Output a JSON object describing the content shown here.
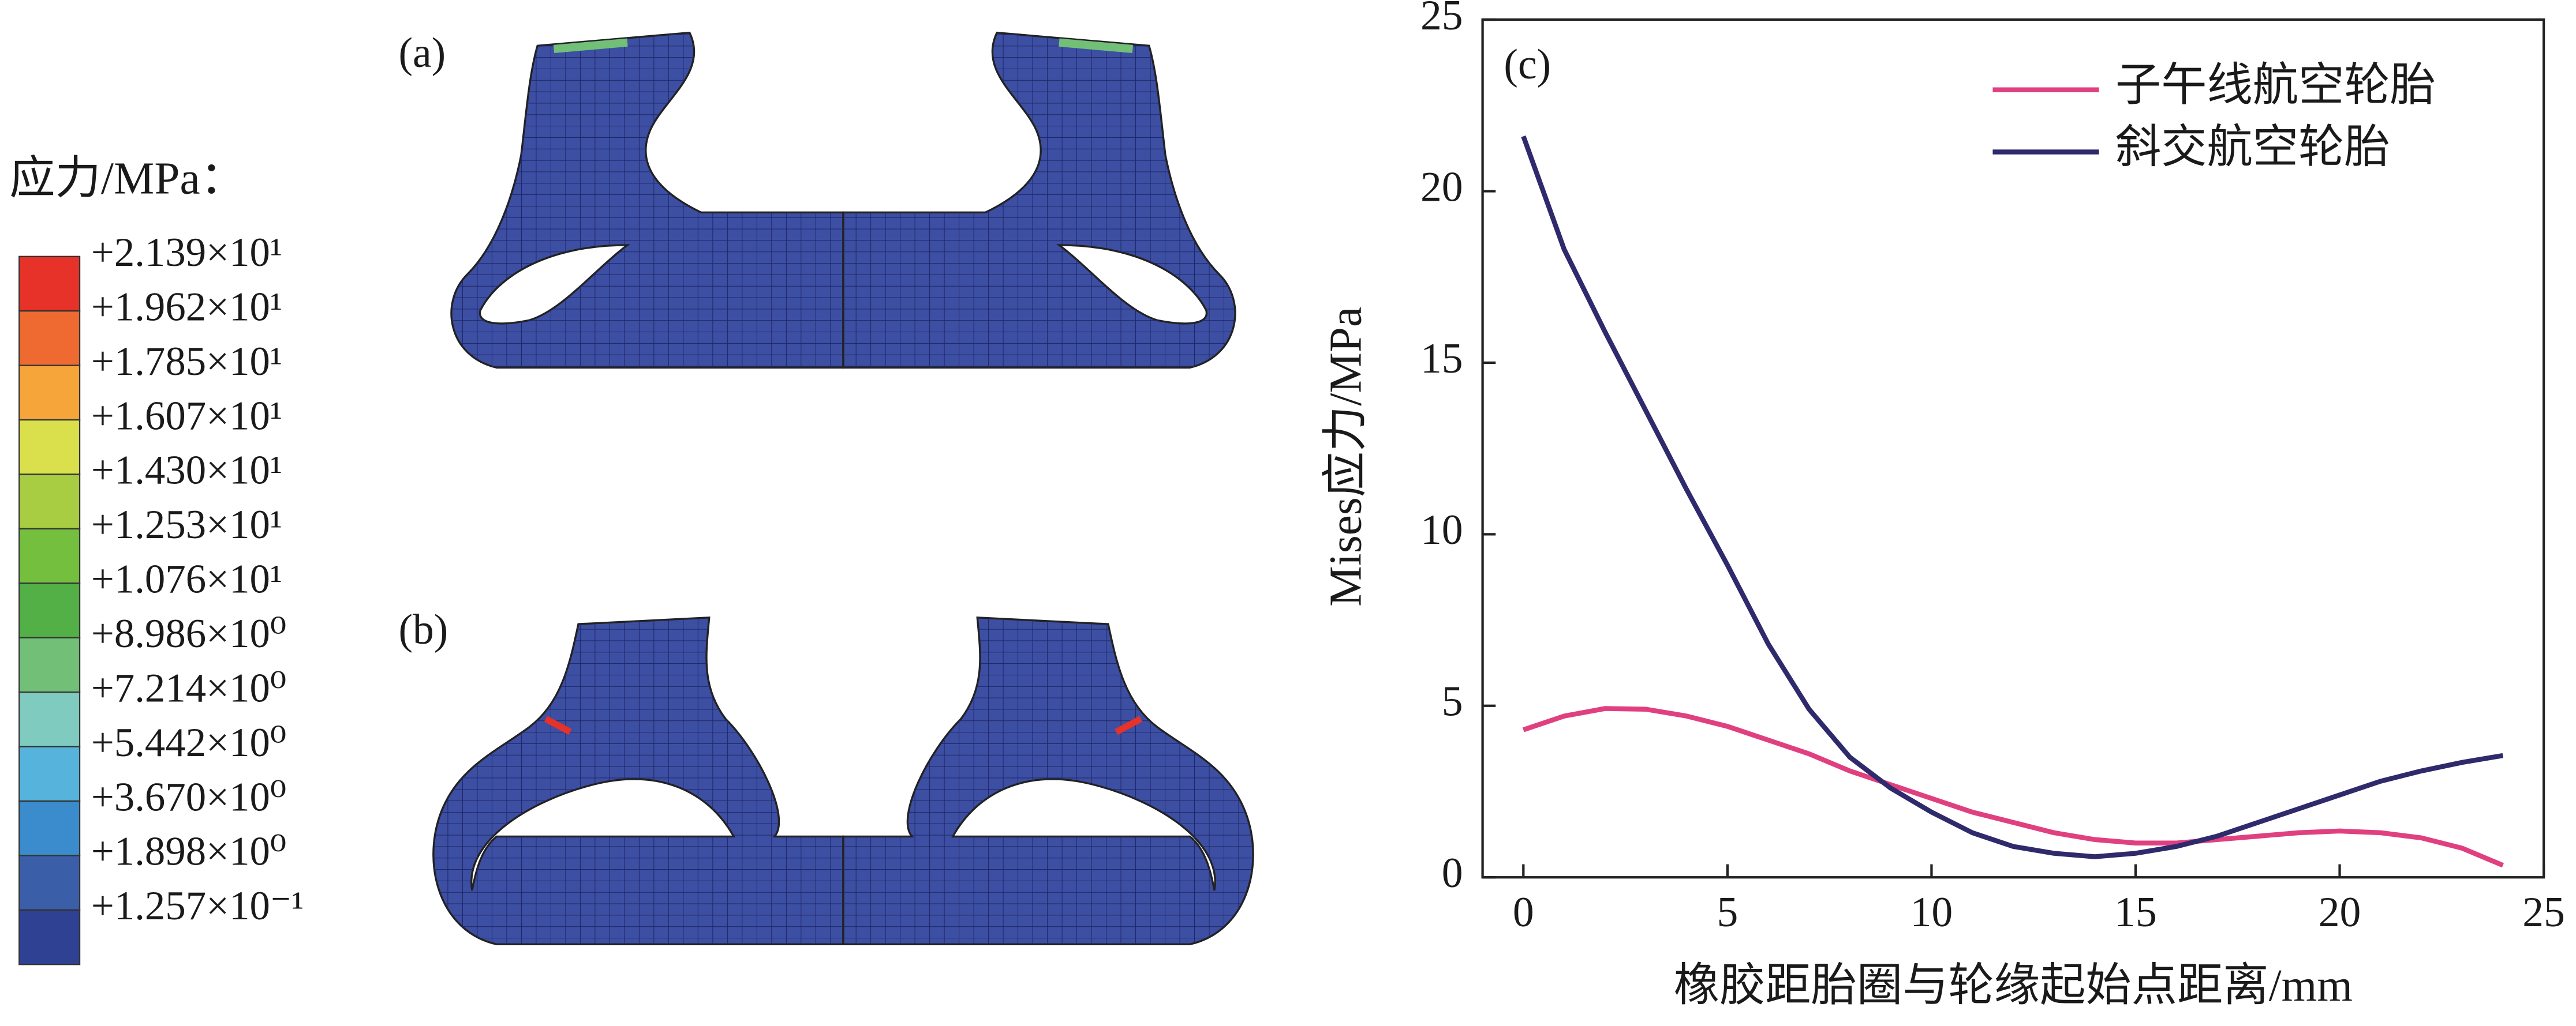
{
  "contour_legend": {
    "title": "应力/MPa：",
    "labels": [
      "+2.139×10¹",
      "+1.962×10¹",
      "+1.785×10¹",
      "+1.607×10¹",
      "+1.430×10¹",
      "+1.253×10¹",
      "+1.076×10¹",
      "+8.986×10⁰",
      "+7.214×10⁰",
      "+5.442×10⁰",
      "+3.670×10⁰",
      "+1.898×10⁰",
      "+1.257×10⁻¹"
    ],
    "colors": [
      "#e63228",
      "#ef6a30",
      "#f5a53a",
      "#d9e04c",
      "#a8cc42",
      "#74bf3e",
      "#52b046",
      "#72bf78",
      "#80cbbf",
      "#55b3dc",
      "#3a8ccc",
      "#3b5ea8",
      "#2f4193"
    ]
  },
  "panel_labels": [
    "(a)",
    "(b)"
  ],
  "chart_data": {
    "type": "line",
    "panel_label": "(c)",
    "x_label": "橡胶距胎圈与轮缘起始点距离/mm",
    "y_label": "Mises应力/MPa",
    "x": [
      0,
      1,
      2,
      3,
      4,
      5,
      6,
      7,
      8,
      9,
      10,
      11,
      12,
      13,
      14,
      15,
      16,
      17,
      18,
      19,
      20,
      21,
      22,
      23,
      24
    ],
    "series": [
      {
        "name": "子午线航空轮胎",
        "color": "#e0407f",
        "values": [
          4.3,
          4.7,
          4.92,
          4.9,
          4.7,
          4.4,
          4.0,
          3.6,
          3.1,
          2.7,
          2.3,
          1.9,
          1.6,
          1.3,
          1.1,
          1.0,
          1.0,
          1.1,
          1.2,
          1.3,
          1.35,
          1.3,
          1.15,
          0.85,
          0.35
        ]
      },
      {
        "name": "斜交航空轮胎",
        "color": "#2e2a6b",
        "values": [
          21.6,
          18.3,
          15.9,
          13.6,
          11.3,
          9.1,
          6.8,
          4.9,
          3.5,
          2.6,
          1.9,
          1.3,
          0.9,
          0.7,
          0.6,
          0.7,
          0.9,
          1.2,
          1.6,
          2.0,
          2.4,
          2.8,
          3.1,
          3.35,
          3.55
        ]
      }
    ],
    "xlim": [
      -1,
      25
    ],
    "xticks": [
      0,
      5,
      10,
      15,
      20,
      25
    ],
    "ylim": [
      0,
      25
    ],
    "yticks": [
      0,
      5,
      10,
      15,
      20,
      25
    ],
    "legend": "upper right"
  }
}
